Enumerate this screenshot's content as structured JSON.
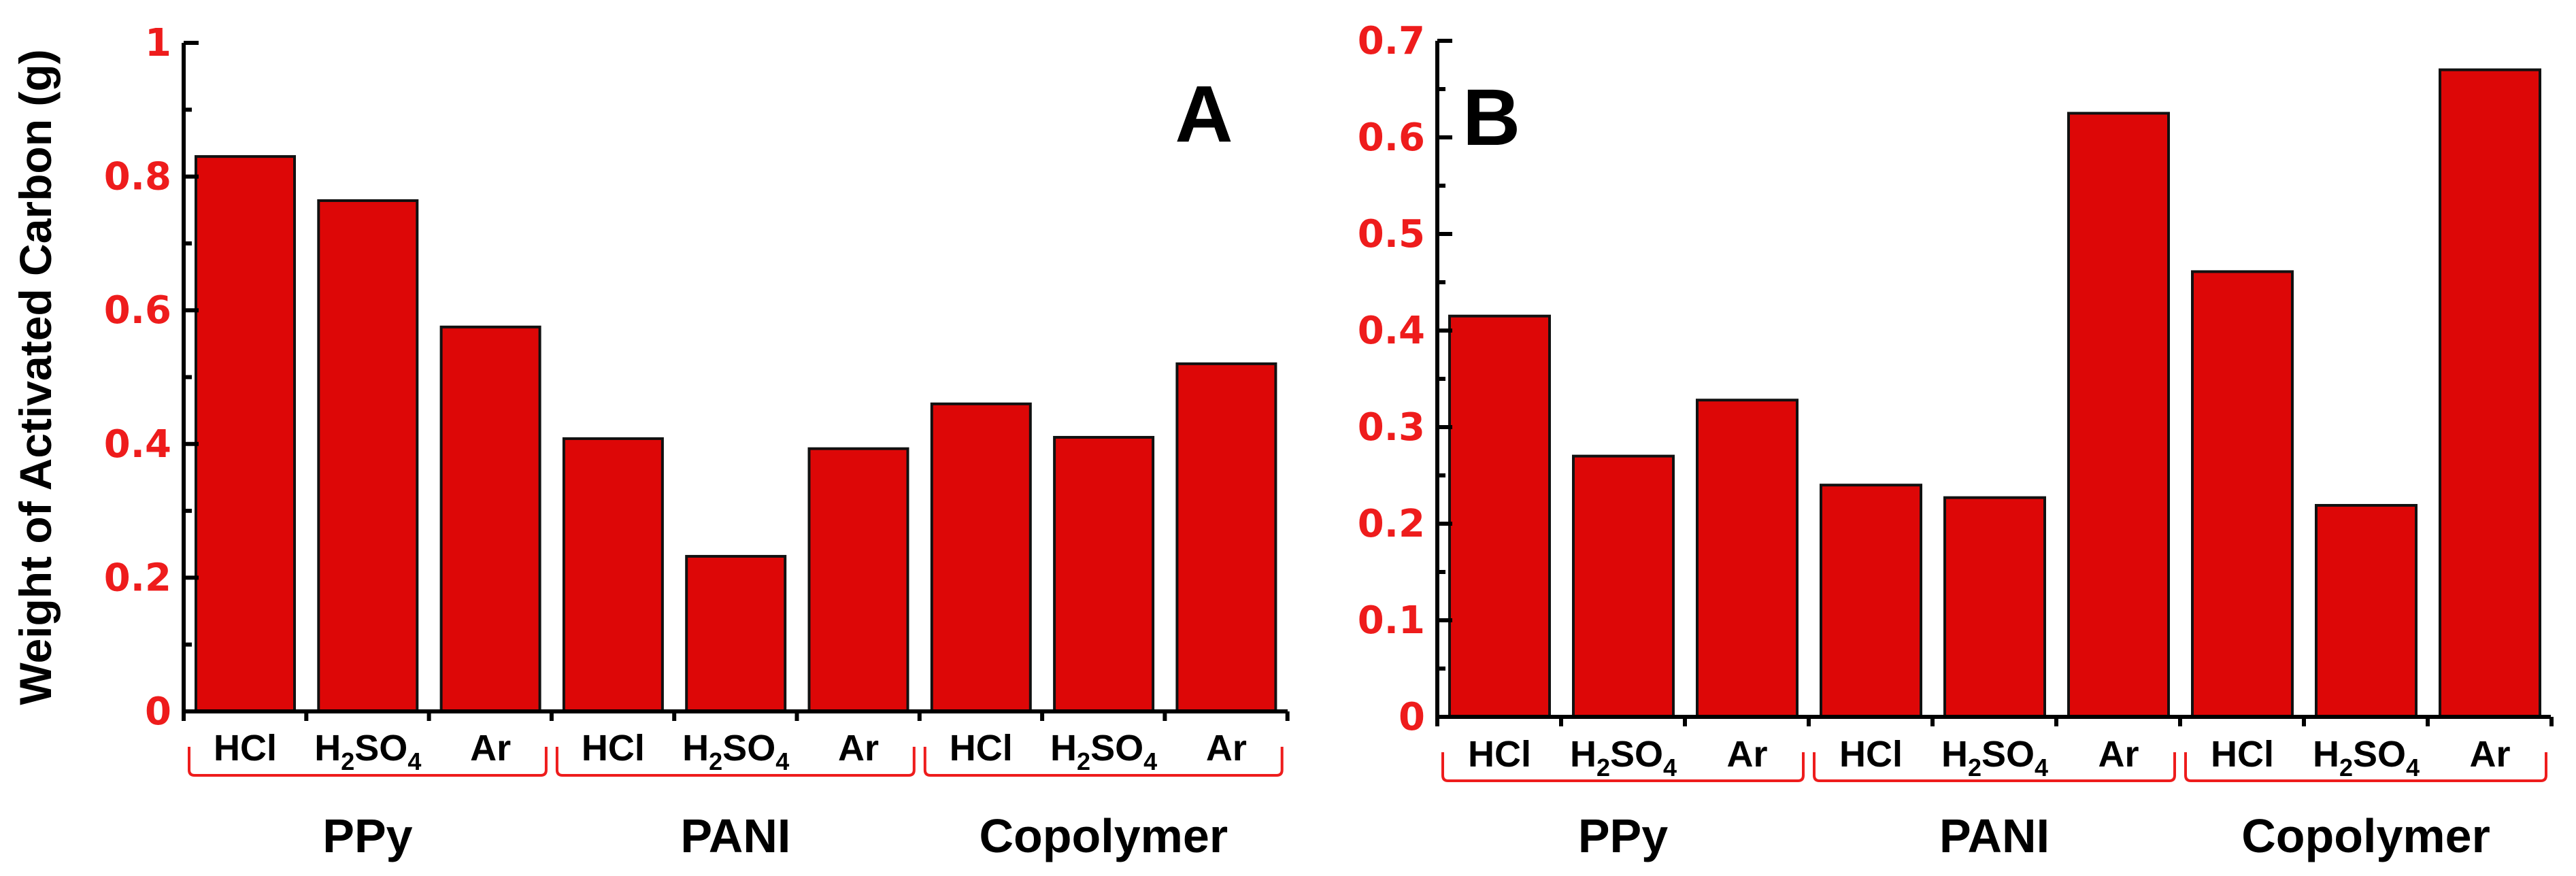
{
  "bar_color": "#dd0707",
  "tick_color": "#ee1c1c",
  "chart_data": [
    {
      "type": "bar",
      "panel": "A",
      "ylabel": "Weight of Activated Carbon (g)",
      "ylim": [
        0,
        1
      ],
      "yticks": [
        0,
        0.2,
        0.4,
        0.6,
        0.8,
        1
      ],
      "ytick_labels": [
        "0",
        "0.2",
        "0.4",
        "0.6",
        "0.8",
        "1"
      ],
      "categories": [
        {
          "main": "HCl",
          "sub1": "",
          "mid": "",
          "sub2": ""
        },
        {
          "main": "H",
          "sub1": "2",
          "mid": "SO",
          "sub2": "4"
        },
        {
          "main": "Ar",
          "sub1": "",
          "mid": "",
          "sub2": ""
        },
        {
          "main": "HCl",
          "sub1": "",
          "mid": "",
          "sub2": ""
        },
        {
          "main": "H",
          "sub1": "2",
          "mid": "SO",
          "sub2": "4"
        },
        {
          "main": "Ar",
          "sub1": "",
          "mid": "",
          "sub2": ""
        },
        {
          "main": "HCl",
          "sub1": "",
          "mid": "",
          "sub2": ""
        },
        {
          "main": "H",
          "sub1": "2",
          "mid": "SO",
          "sub2": "4"
        },
        {
          "main": "Ar",
          "sub1": "",
          "mid": "",
          "sub2": ""
        }
      ],
      "groups": [
        "PPy",
        "PANI",
        "Copolymer"
      ],
      "values": [
        0.83,
        0.764,
        0.575,
        0.408,
        0.232,
        0.393,
        0.46,
        0.41,
        0.52
      ]
    },
    {
      "type": "bar",
      "panel": "B",
      "ylabel": "",
      "ylim": [
        0,
        0.7
      ],
      "yticks": [
        0,
        0.1,
        0.2,
        0.3,
        0.4,
        0.5,
        0.6,
        0.7
      ],
      "ytick_labels": [
        "0",
        "0.1",
        "0.2",
        "0.3",
        "0.4",
        "0.5",
        "0.6",
        "0.7"
      ],
      "categories": [
        {
          "main": "HCl",
          "sub1": "",
          "mid": "",
          "sub2": ""
        },
        {
          "main": "H",
          "sub1": "2",
          "mid": "SO",
          "sub2": "4"
        },
        {
          "main": "Ar",
          "sub1": "",
          "mid": "",
          "sub2": ""
        },
        {
          "main": "HCl",
          "sub1": "",
          "mid": "",
          "sub2": ""
        },
        {
          "main": "H",
          "sub1": "2",
          "mid": "SO",
          "sub2": "4"
        },
        {
          "main": "Ar",
          "sub1": "",
          "mid": "",
          "sub2": ""
        },
        {
          "main": "HCl",
          "sub1": "",
          "mid": "",
          "sub2": ""
        },
        {
          "main": "H",
          "sub1": "2",
          "mid": "SO",
          "sub2": "4"
        },
        {
          "main": "Ar",
          "sub1": "",
          "mid": "",
          "sub2": ""
        }
      ],
      "groups": [
        "PPy",
        "PANI",
        "Copolymer"
      ],
      "values": [
        0.415,
        0.27,
        0.328,
        0.24,
        0.227,
        0.625,
        0.461,
        0.219,
        0.67
      ]
    }
  ]
}
